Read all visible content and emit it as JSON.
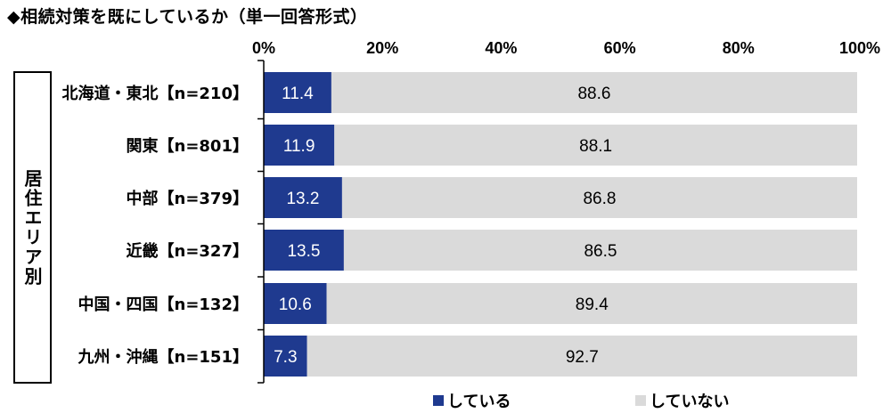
{
  "title": "◆相続対策を既にしているか（単一回答形式）",
  "side_label": "居住エリア別",
  "colors": {
    "doing": "#1f3a8f",
    "not_doing": "#dadada",
    "axis": "#000000"
  },
  "chart_data": {
    "type": "bar",
    "orientation": "horizontal",
    "stacked": true,
    "categories": [
      "北海道・東北【n=210】",
      "関東【n=801】",
      "中部【n=379】",
      "近畿【n=327】",
      "中国・四国【n=132】",
      "九州・沖縄【n=151】"
    ],
    "series": [
      {
        "name": "している",
        "values": [
          11.4,
          11.9,
          13.2,
          13.5,
          10.6,
          7.3
        ]
      },
      {
        "name": "していない",
        "values": [
          88.6,
          88.1,
          86.8,
          86.5,
          89.4,
          92.7
        ]
      }
    ],
    "xlim": [
      0,
      100
    ],
    "x_ticks": [
      "0%",
      "20%",
      "40%",
      "60%",
      "80%",
      "100%"
    ],
    "grid": false,
    "legend_position": "bottom"
  }
}
